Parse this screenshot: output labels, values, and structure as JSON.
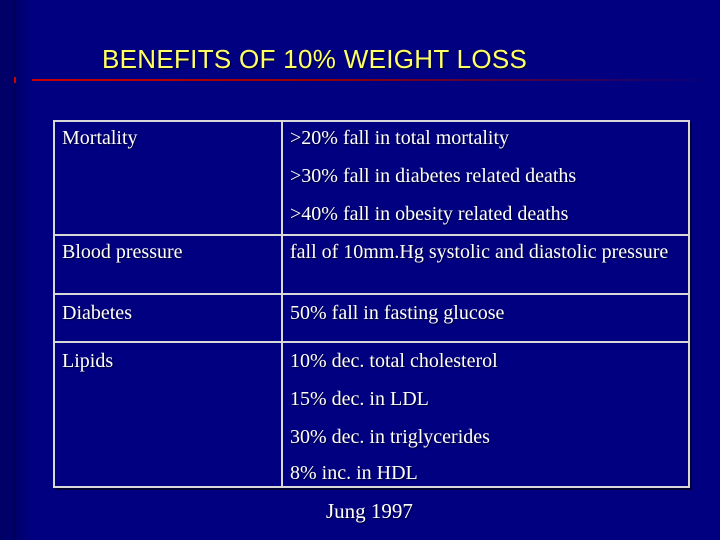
{
  "slide": {
    "title": "BENEFITS OF 10% WEIGHT LOSS",
    "footer": "Jung 1997"
  },
  "table": {
    "rows": [
      {
        "label": "Mortality",
        "values": [
          ">20% fall in total mortality",
          ">30% fall in diabetes related deaths",
          ">40% fall in obesity related deaths"
        ]
      },
      {
        "label": "Blood pressure",
        "values": [
          "fall of 10mm.Hg systolic and diastolic pressure"
        ]
      },
      {
        "label": "Diabetes",
        "values": [
          "50% fall in fasting glucose"
        ]
      },
      {
        "label": "Lipids",
        "values": [
          "10% dec. total cholesterol",
          "15% dec. in LDL",
          "30% dec. in triglycerides",
          "8% inc. in HDL"
        ]
      }
    ]
  },
  "colors": {
    "background": "#000080",
    "title": "#ffff66",
    "text": "#ffffff",
    "rule": "#cc0000",
    "border": "#d8d8d8"
  }
}
